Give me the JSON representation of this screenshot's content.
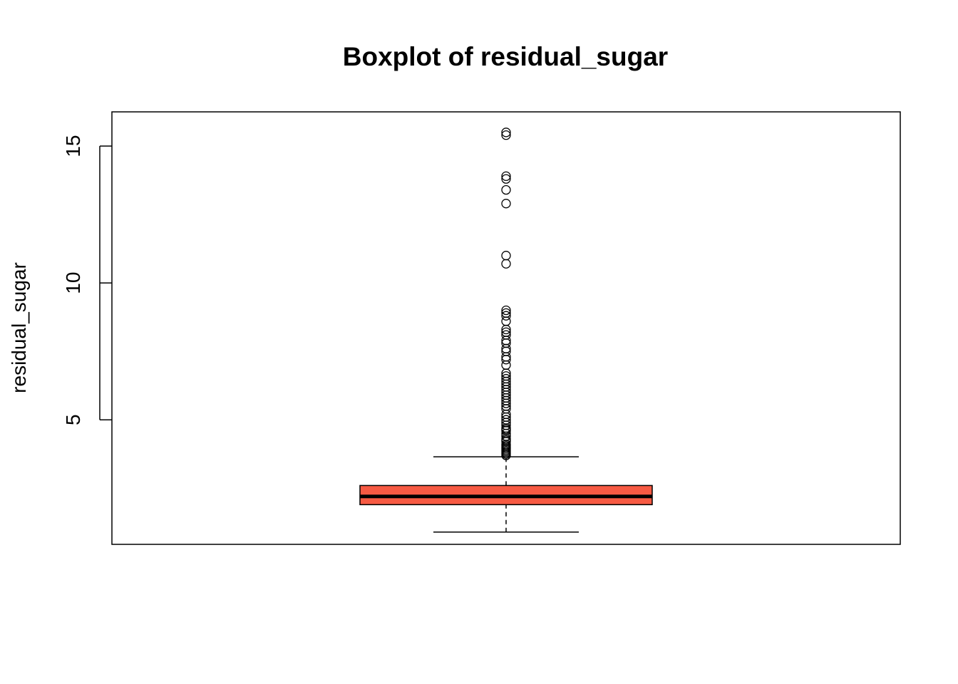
{
  "chart_data": {
    "type": "boxplot",
    "title": "Boxplot of residual_sugar",
    "xlabel": "",
    "ylabel": "residual_sugar",
    "ylim": [
      0.45,
      16.25
    ],
    "yticks": [
      5,
      10,
      15
    ],
    "ytick_labels": [
      "5",
      "10",
      "15"
    ],
    "grid": false,
    "box": {
      "fill_color": "#f75a43",
      "whisker_low": 0.9,
      "q1": 1.9,
      "median": 2.2,
      "q3": 2.6,
      "whisker_high": 3.65
    },
    "outliers": [
      3.7,
      3.75,
      3.8,
      3.85,
      3.9,
      3.95,
      4.0,
      4.05,
      4.1,
      4.2,
      4.25,
      4.3,
      4.4,
      4.5,
      4.6,
      4.65,
      4.7,
      4.8,
      4.9,
      5.0,
      5.1,
      5.2,
      5.4,
      5.5,
      5.6,
      5.7,
      5.8,
      5.9,
      6.0,
      6.1,
      6.2,
      6.3,
      6.4,
      6.5,
      6.6,
      6.7,
      7.0,
      7.2,
      7.3,
      7.5,
      7.6,
      7.8,
      7.9,
      8.1,
      8.2,
      8.3,
      8.6,
      8.8,
      8.9,
      9.0,
      10.7,
      11.0,
      12.9,
      13.4,
      13.8,
      13.9,
      15.4,
      15.5
    ]
  }
}
